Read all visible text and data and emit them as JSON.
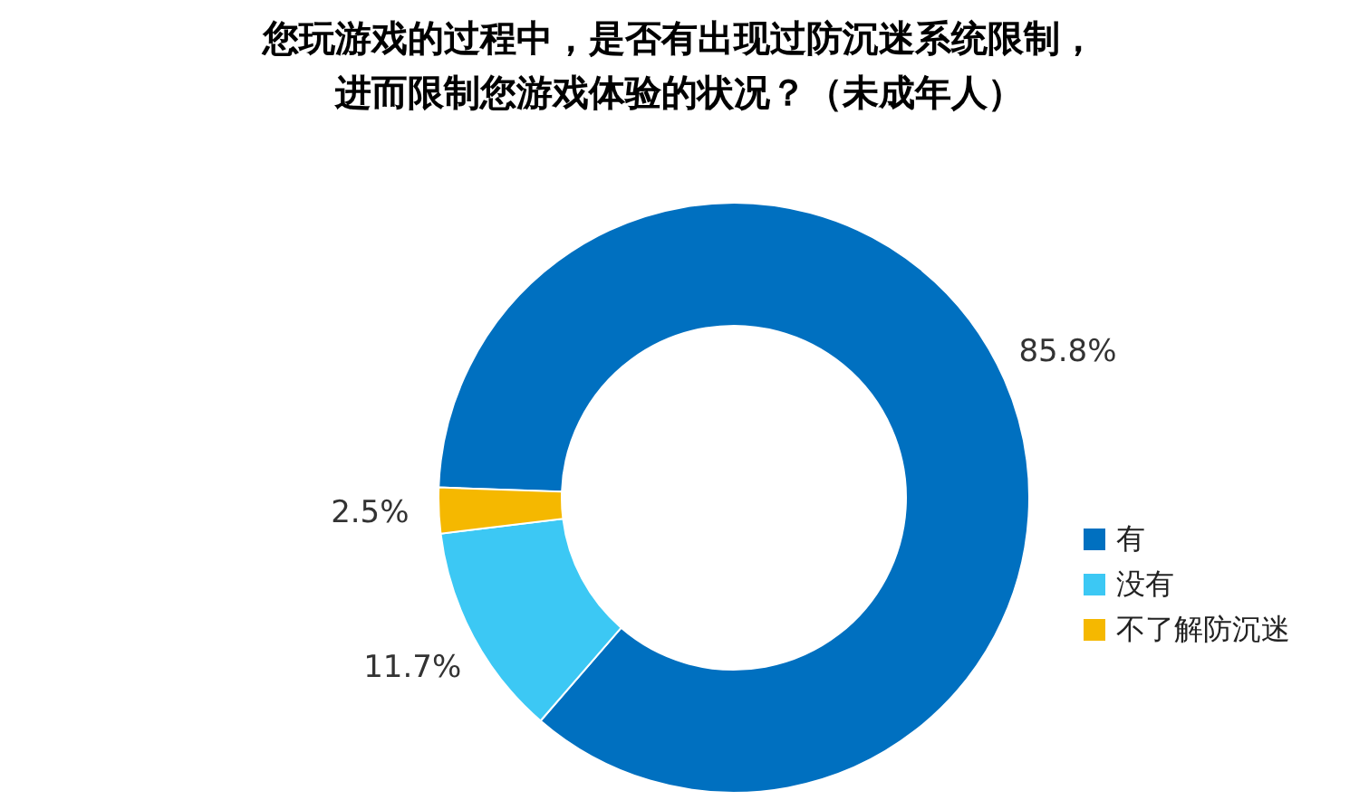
{
  "chart_data": {
    "type": "donut",
    "title": "您玩游戏的过程中，是否有出现过防沉迷系统限制，进而限制您游戏体验的状况？（未成年人）",
    "categories": [
      "有",
      "没有",
      "不了解防沉迷"
    ],
    "values": [
      85.8,
      11.7,
      2.5
    ],
    "colors": [
      "#0070c0",
      "#3cc8f4",
      "#f5b800"
    ],
    "value_labels": [
      "85.8%",
      "11.7%",
      "2.5%"
    ],
    "legend": "bottom right"
  }
}
